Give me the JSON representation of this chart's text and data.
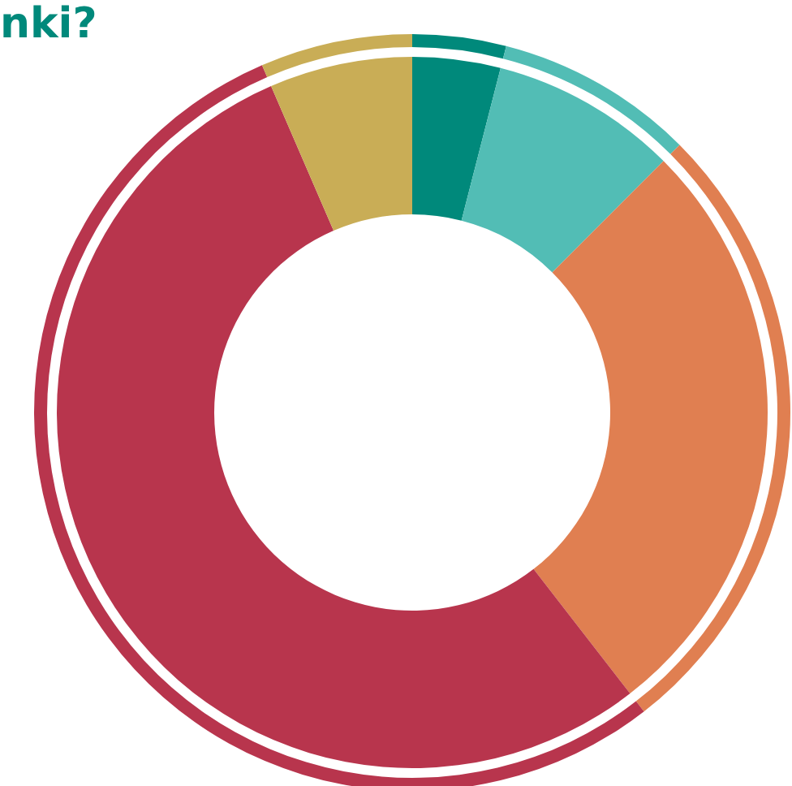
{
  "chart_data": {
    "type": "donut",
    "title": "nki?",
    "categories": [
      null,
      null,
      null,
      null,
      null
    ],
    "series": [
      {
        "values": [
          4,
          8.5,
          27,
          54,
          6.5
        ],
        "colors": [
          "#00897b",
          "#52bdb5",
          "#e07f51",
          "#b8354d",
          "#c9ad56"
        ]
      },
      {
        "values": [
          4,
          8.5,
          27,
          54,
          6.5
        ],
        "colors": [
          "#00897b",
          "#52bdb5",
          "#e07f51",
          "#b8354d",
          "#c9ad56"
        ]
      }
    ]
  }
}
